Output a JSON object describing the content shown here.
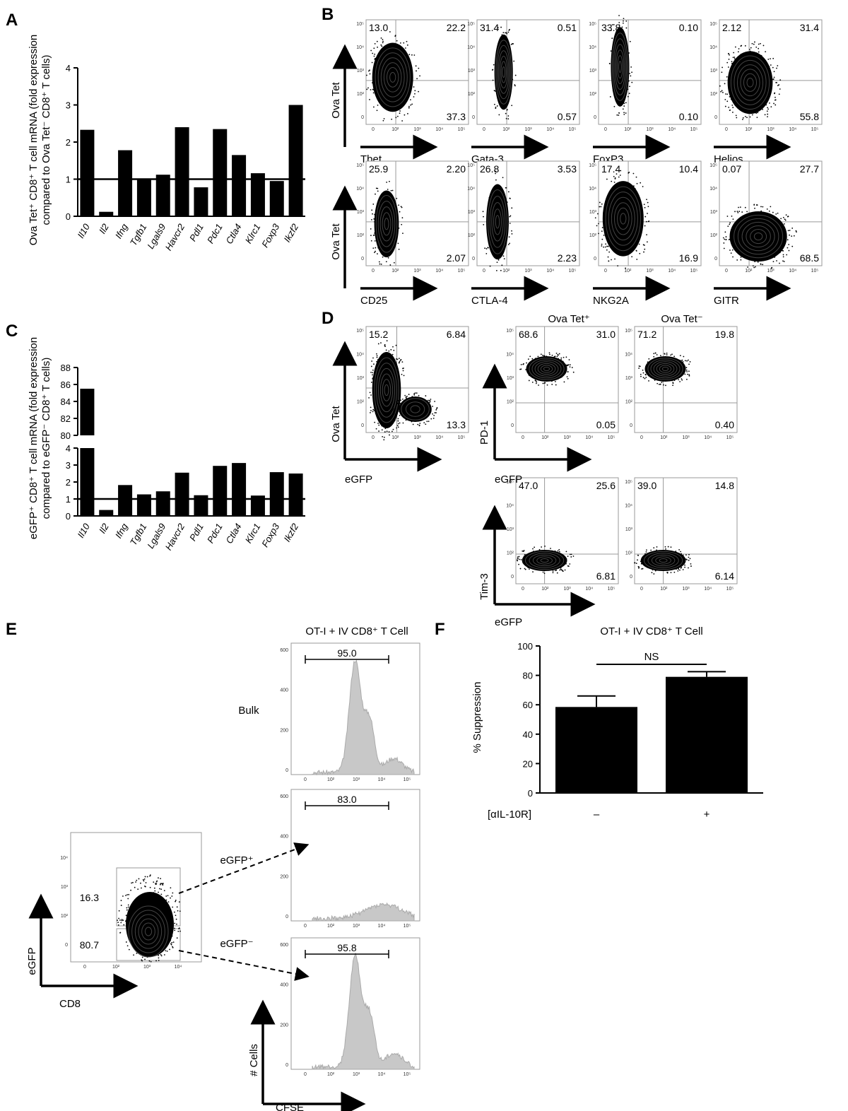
{
  "panels": {
    "A": {
      "label": "A",
      "ylabel_lines": [
        "Ova Tet⁺ CD8⁺ T cell mRNA (fold expression",
        "compared to Ova Tet⁻ CD8⁺ T cells)"
      ]
    },
    "B": {
      "label": "B",
      "yaxis": "Ova Tet",
      "plots": [
        {
          "marker": "Tbet",
          "ul": "13.0",
          "ur": "22.2",
          "lr": "37.3"
        },
        {
          "marker": "Gata-3",
          "ul": "31.4",
          "ur": "0.51",
          "lr": "0.57"
        },
        {
          "marker": "FoxP3",
          "ul": "33.8",
          "ur": "0.10",
          "lr": "0.10"
        },
        {
          "marker": "Helios",
          "ul": "2.12",
          "ur": "31.4",
          "lr": "55.8"
        },
        {
          "marker": "CD25",
          "ul": "25.9",
          "ur": "2.20",
          "lr": "2.07"
        },
        {
          "marker": "CTLA-4",
          "ul": "26.8",
          "ur": "3.53",
          "lr": "2.23"
        },
        {
          "marker": "NKG2A",
          "ul": "17.4",
          "ur": "10.4",
          "lr": "16.9"
        },
        {
          "marker": "GITR",
          "ul": "0.07",
          "ur": "27.7",
          "lr": "68.5"
        }
      ]
    },
    "C": {
      "label": "C",
      "ylabel_lines": [
        "eGFP⁺ CD8⁺ T cell mRNA (fold expression",
        "compared to eGFP⁻ CD8⁺ T cells)"
      ]
    },
    "D": {
      "label": "D",
      "col_tet_pos": "Ova Tet⁺",
      "col_tet_neg": "Ova Tet⁻",
      "main": {
        "yaxis": "Ova Tet",
        "xaxis": "eGFP",
        "ul": "15.2",
        "ur": "6.84",
        "lr": "13.3"
      },
      "pd1": [
        {
          "ul": "68.6",
          "ur": "31.0",
          "lr": "0.05"
        },
        {
          "ul": "71.2",
          "ur": "19.8",
          "lr": "0.40"
        }
      ],
      "tim3": [
        {
          "ul": "47.0",
          "ur": "25.6",
          "lr": "6.81"
        },
        {
          "ul": "39.0",
          "ur": "14.8",
          "lr": "6.14"
        }
      ],
      "pd1_yaxis": "PD-1",
      "tim3_yaxis": "Tim-3",
      "xaxis": "eGFP"
    },
    "E": {
      "label": "E",
      "title": "OT-I + IV CD8⁺ T Cell",
      "row_labels": [
        "Bulk",
        "eGFP⁺",
        "eGFP⁻"
      ],
      "gates": [
        "95.0",
        "83.0",
        "95.8"
      ],
      "scatter": {
        "xaxis": "CD8",
        "yaxis": "eGFP",
        "upper": "16.3",
        "lower": "80.7"
      },
      "hist_yaxis": "# Cells",
      "hist_xaxis": "CFSE"
    },
    "F": {
      "label": "F",
      "title": "OT-I + IV CD8⁺ T Cell",
      "ylabel": "% Suppression",
      "treatment_label": "[αIL-10R]",
      "sig": "NS"
    }
  },
  "chart_data": [
    {
      "type": "bar",
      "panel": "A",
      "categories": [
        "Il10",
        "Il2",
        "Ifng",
        "Tgfb1",
        "Lgals9",
        "Havcr2",
        "Pdl1",
        "Pdc1",
        "Ctla4",
        "Klrc1",
        "Foxp3",
        "Ikzf2"
      ],
      "values": [
        2.33,
        0.12,
        1.78,
        1.0,
        1.12,
        2.4,
        0.78,
        2.35,
        1.65,
        1.16,
        0.95,
        3.0
      ],
      "ylim": [
        0,
        4
      ],
      "yticks": [
        0,
        1,
        2,
        3,
        4
      ],
      "reference_line": 1
    },
    {
      "type": "bar",
      "panel": "C",
      "categories": [
        "Il10",
        "Il2",
        "Ifng",
        "Tgfb1",
        "Lgals9",
        "Havcr2",
        "Pdl1",
        "Pdc1",
        "Ctla4",
        "Klrc1",
        "Foxp3",
        "Ikzf2"
      ],
      "values": [
        85.5,
        0.35,
        1.82,
        1.27,
        1.45,
        2.55,
        1.22,
        2.95,
        3.12,
        1.2,
        2.58,
        2.5
      ],
      "axis_break": {
        "lower": [
          0,
          4
        ],
        "upper": [
          80,
          88
        ]
      },
      "yticks_lower": [
        0,
        1,
        2,
        3,
        4
      ],
      "yticks_upper": [
        80,
        82,
        84,
        86,
        88
      ],
      "reference_line": 1
    },
    {
      "type": "bar",
      "panel": "F",
      "categories": [
        "–",
        "+"
      ],
      "values": [
        58.5,
        79.0
      ],
      "errors": [
        7.5,
        3.5
      ],
      "ylim": [
        0,
        100
      ],
      "yticks": [
        0,
        20,
        40,
        60,
        80,
        100
      ],
      "ylabel": "% Suppression"
    }
  ]
}
